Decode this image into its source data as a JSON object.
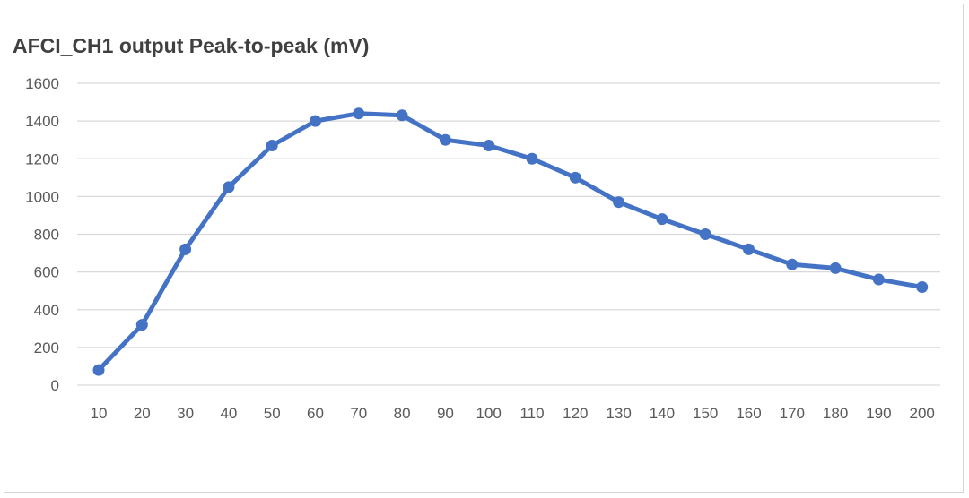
{
  "chart_data": {
    "type": "line",
    "title": "AFCI_CH1 output Peak-to-peak (mV)",
    "xlabel": "",
    "ylabel": "",
    "categories": [
      "10",
      "20",
      "30",
      "40",
      "50",
      "60",
      "70",
      "80",
      "90",
      "100",
      "110",
      "120",
      "130",
      "140",
      "150",
      "160",
      "170",
      "180",
      "190",
      "200"
    ],
    "series": [
      {
        "name": "AFCI_CH1 output Peak-to-peak (mV)",
        "values": [
          80,
          320,
          720,
          1050,
          1270,
          1400,
          1440,
          1430,
          1300,
          1270,
          1200,
          1100,
          970,
          880,
          800,
          720,
          640,
          620,
          560,
          520
        ]
      }
    ],
    "ylim": [
      0,
      1600
    ],
    "yticks": [
      0,
      200,
      400,
      600,
      800,
      1000,
      1200,
      1400,
      1600
    ],
    "grid": true,
    "legend": "none",
    "colors": {
      "line": "#4472c4",
      "grid": "#d9d9d9",
      "text": "#595959",
      "title": "#404040"
    }
  }
}
